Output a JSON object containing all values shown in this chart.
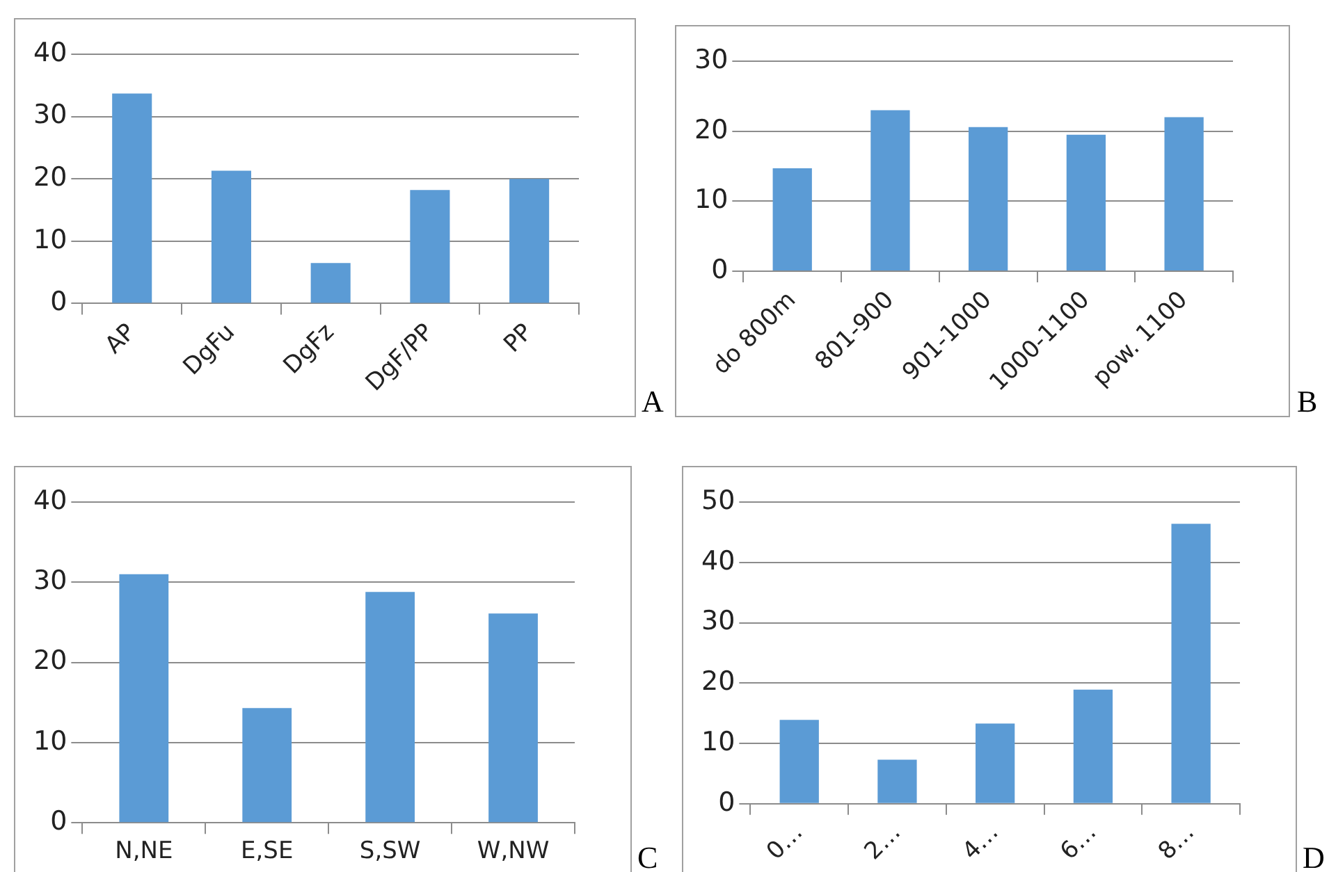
{
  "chart_data": [
    {
      "type": "bar",
      "annotations": [
        "A"
      ],
      "categories": [
        "AP",
        "DgFu",
        "DgFz",
        "DgF/PP",
        "PP"
      ],
      "values": [
        33.7,
        21.3,
        6.5,
        18.2,
        20
      ],
      "color": "#5b9bd5",
      "ylim": [
        0,
        40
      ],
      "yticks": [
        0,
        10,
        20,
        30,
        40
      ],
      "grid": "y",
      "legend": false
    },
    {
      "type": "bar",
      "annotations": [
        "B"
      ],
      "categories": [
        "do 800m",
        "801-900",
        "901-1000",
        "1000-1100",
        "pow. 1100"
      ],
      "values": [
        14.7,
        23.0,
        20.6,
        19.5,
        22.0
      ],
      "color": "#5b9bd5",
      "ylim": [
        0,
        30
      ],
      "yticks": [
        0,
        10,
        20,
        30
      ],
      "grid": "y",
      "legend": false
    },
    {
      "type": "bar",
      "annotations": [
        "C"
      ],
      "categories": [
        "N,NE",
        "E,SE",
        "S,SW",
        "W,NW"
      ],
      "values": [
        31.0,
        14.3,
        28.8,
        26.1
      ],
      "color": "#5b9bd5",
      "ylim": [
        0,
        40
      ],
      "yticks": [
        0,
        10,
        20,
        30,
        40
      ],
      "grid": "y",
      "legend": false
    },
    {
      "type": "bar",
      "annotations": [
        "D"
      ],
      "categories": [
        "0…",
        "2…",
        "4…",
        "6…",
        "8…"
      ],
      "values": [
        13.9,
        7.3,
        13.3,
        18.9,
        46.4
      ],
      "color": "#5b9bd5",
      "ylim": [
        0,
        50
      ],
      "yticks": [
        0,
        10,
        20,
        30,
        40,
        50
      ],
      "grid": "y",
      "legend": false
    }
  ]
}
